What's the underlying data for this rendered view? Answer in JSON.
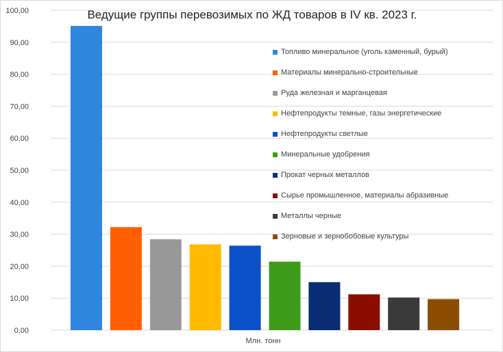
{
  "chart_data": {
    "type": "bar",
    "title": "Ведущие группы перевозимых по ЖД товаров в IV кв. 2023 г.",
    "xlabel": "Млн. тонн",
    "ylabel": "",
    "ylim": [
      0,
      100
    ],
    "yticks": [
      "0,00",
      "10,00",
      "20,00",
      "30,00",
      "40,00",
      "50,00",
      "60,00",
      "70,00",
      "80,00",
      "90,00",
      "100,00"
    ],
    "grid": true,
    "legend_position": "right",
    "series": [
      {
        "name": "Топливо минеральное (уголь каменный, бурый)",
        "value": 95.1,
        "color": "#2e86de"
      },
      {
        "name": "Материалы минерально-строительные",
        "value": 32.2,
        "color": "#ff5f00"
      },
      {
        "name": "Руда железная и марганцевая",
        "value": 28.4,
        "color": "#999999"
      },
      {
        "name": "Нефтепродукты  темные,  газы энергетические",
        "value": 26.8,
        "color": "#ffb900"
      },
      {
        "name": "Нефтепродукты  светлые",
        "value": 26.4,
        "color": "#0b50c9"
      },
      {
        "name": "Минеральные удобрения",
        "value": 21.4,
        "color": "#3f9c1a"
      },
      {
        "name": "Прокат черных металлов",
        "value": 15.0,
        "color": "#0a2d73"
      },
      {
        "name": "Сырье  промышленное,  материалы абразивные",
        "value": 11.2,
        "color": "#8b0f00"
      },
      {
        "name": "Металлы черные",
        "value": 10.2,
        "color": "#3a3a3a"
      },
      {
        "name": "Зерновые  и зернобобовые  культуры",
        "value": 9.7,
        "color": "#8a4d00"
      }
    ]
  }
}
